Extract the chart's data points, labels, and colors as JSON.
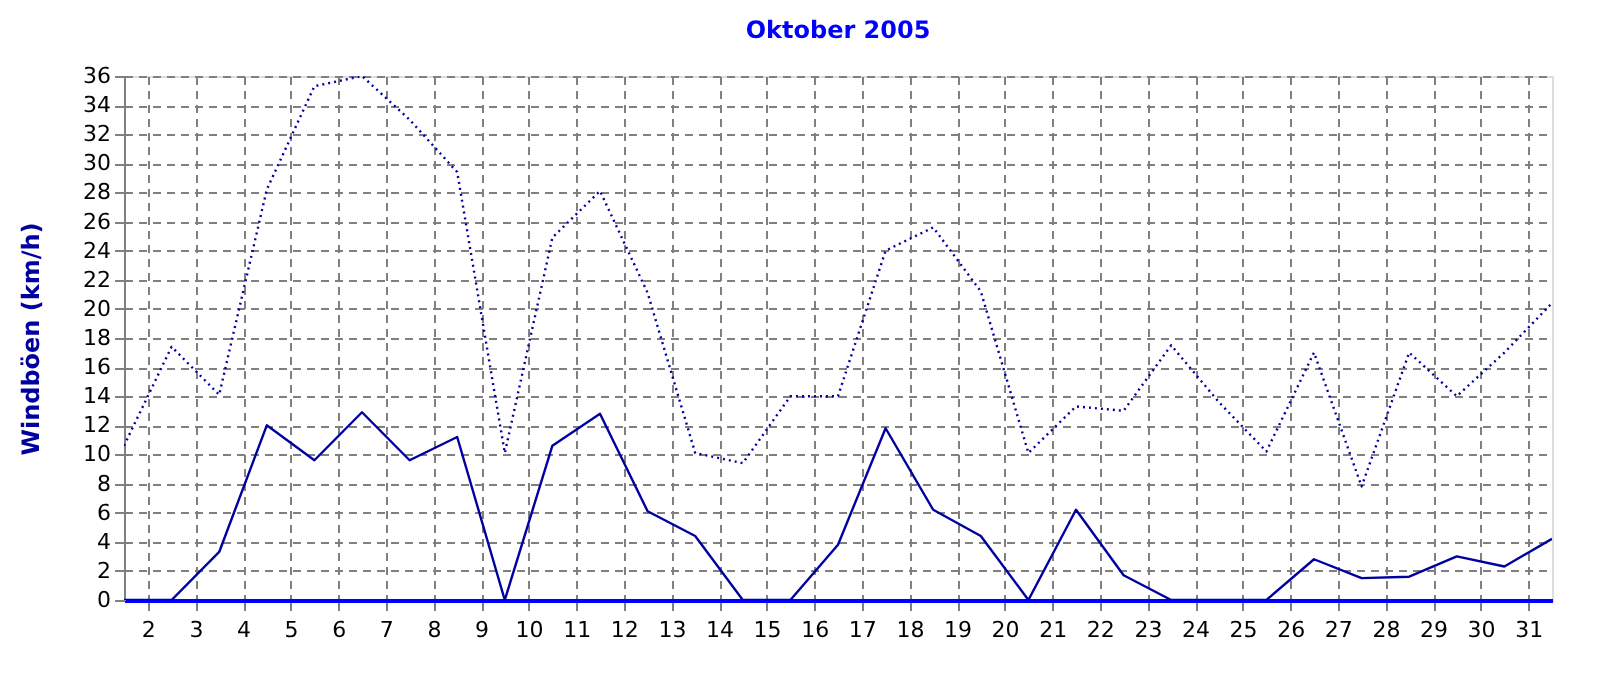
{
  "chart_data": {
    "type": "line",
    "title": "Oktober 2005",
    "ylabel": "Windböen  (km/h)",
    "x": [
      1.5,
      2.5,
      3.5,
      4.5,
      5.5,
      6.5,
      7.5,
      8.5,
      9.5,
      10.5,
      11.5,
      12.5,
      13.5,
      14.5,
      15.5,
      16.5,
      17.5,
      18.5,
      19.5,
      20.5,
      21.5,
      22.5,
      23.5,
      24.5,
      25.5,
      26.5,
      27.5,
      28.5,
      29.5,
      30.5,
      31.5
    ],
    "series": [
      {
        "color": "#0000a0",
        "line_style": "dotted",
        "values": [
          10.6,
          17.4,
          14.1,
          28.2,
          35.3,
          36,
          33.0,
          29.4,
          10.1,
          24.9,
          28.1,
          21.1,
          10.1,
          9.4,
          14.0,
          14.0,
          24.0,
          25.6,
          21.2,
          10.1,
          13.3,
          13.0,
          17.5,
          13.6,
          10.2,
          17.0,
          7.8,
          17.0,
          14.0,
          17.0,
          20.4
        ]
      },
      {
        "color": "#0000a0",
        "line_style": "solid",
        "values": [
          0,
          0,
          3.3,
          12.0,
          9.6,
          12.9,
          9.6,
          11.2,
          0,
          10.6,
          12.8,
          6.1,
          4.4,
          0,
          0,
          3.8,
          11.8,
          6.2,
          4.4,
          0,
          6.2,
          1.7,
          0,
          0,
          0,
          2.8,
          1.5,
          1.6,
          3.0,
          2.3,
          4.2
        ]
      }
    ],
    "xlim": [
      1.5,
      31.5
    ],
    "xticks": [
      2,
      3,
      4,
      5,
      6,
      7,
      8,
      9,
      10,
      11,
      12,
      13,
      14,
      15,
      16,
      17,
      18,
      19,
      20,
      21,
      22,
      23,
      24,
      25,
      26,
      27,
      28,
      29,
      30,
      31
    ],
    "ylim": [
      0,
      36
    ],
    "yticks": [
      0,
      2,
      4,
      6,
      8,
      10,
      12,
      14,
      16,
      18,
      20,
      22,
      24,
      26,
      28,
      30,
      32,
      34,
      36
    ],
    "grid": true,
    "legend": false,
    "marker": "none"
  }
}
